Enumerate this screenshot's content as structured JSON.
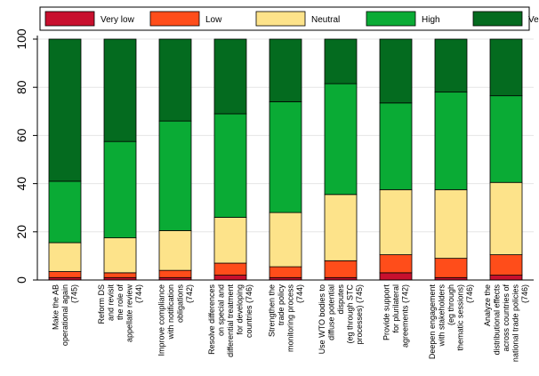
{
  "chart_data": {
    "type": "bar",
    "stacked": true,
    "orientation": "vertical",
    "percent": true,
    "title": "",
    "xlabel": "",
    "ylabel": "",
    "ylim": [
      0,
      100
    ],
    "yticks": [
      0,
      20,
      40,
      60,
      80,
      100
    ],
    "grid": true,
    "legend_position": "top",
    "categories": [
      [
        "Make the AB",
        "operational again",
        "(745)"
      ],
      [
        "Reform DS",
        "and revisit",
        "the role of",
        "appellate review",
        "(744)"
      ],
      [
        "Improve compliance",
        "with notification",
        "obligations",
        "(742)"
      ],
      [
        "Resolve differences",
        "on special and",
        "differential treatment",
        "for developing",
        "countries (746)"
      ],
      [
        "Strengthen the",
        "trade policy",
        "monitoring process",
        "(744)"
      ],
      [
        "Use WTO bodies to",
        "diffuse potential",
        "disputes",
        "(eg through STC",
        "processes) (745)"
      ],
      [
        "Provide support",
        "for plurilateral",
        "agreements (742)"
      ],
      [
        "Deepen engagement",
        "with stakeholders",
        "(eg through",
        "thematic sessions)",
        "(746)"
      ],
      [
        "Analyze the",
        "distributional effects",
        "across countries of",
        "national trade policies",
        "(746)"
      ]
    ],
    "series": [
      {
        "name": "Very low",
        "color": "#c8102e",
        "values": [
          1,
          1,
          1,
          2,
          1,
          1,
          3,
          1,
          2
        ]
      },
      {
        "name": "Low",
        "color": "#ff4d1a",
        "values": [
          2.5,
          2,
          3,
          5,
          4.5,
          7,
          7.5,
          8,
          8.5
        ]
      },
      {
        "name": "Neutral",
        "color": "#fde38a",
        "values": [
          12,
          14.5,
          16.5,
          19,
          22.5,
          27.5,
          27,
          28.5,
          30
        ]
      },
      {
        "name": "High",
        "color": "#0aab35",
        "values": [
          25.5,
          40,
          45.5,
          43,
          46,
          46,
          36,
          40.5,
          36
        ]
      },
      {
        "name": "Very high",
        "color": "#046b1f",
        "values": [
          59,
          42.5,
          34,
          31,
          26,
          18.5,
          26.5,
          22,
          23.5
        ]
      }
    ]
  }
}
